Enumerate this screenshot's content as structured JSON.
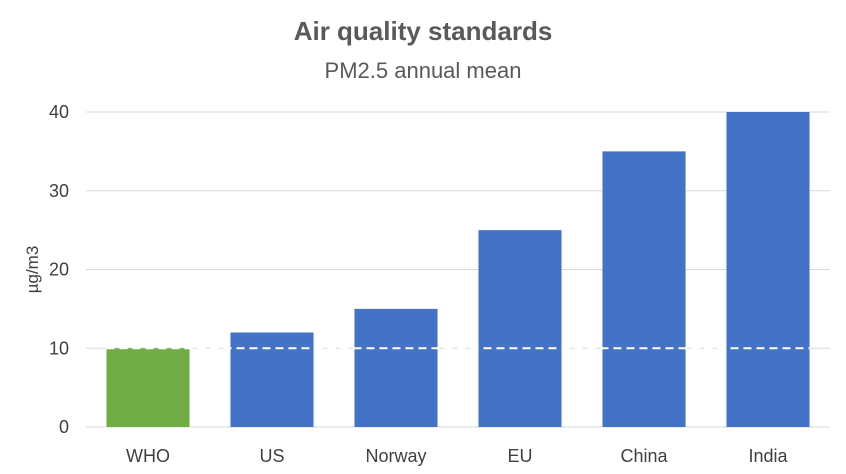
{
  "chart_data": {
    "type": "bar",
    "title": "Air quality standards",
    "subtitle": "PM2.5 annual mean",
    "ylabel": "µg/m3",
    "xlabel": "",
    "categories": [
      "WHO",
      "US",
      "Norway",
      "EU",
      "China",
      "India"
    ],
    "values": [
      10,
      12,
      15,
      25,
      35,
      40
    ],
    "ylim": [
      0,
      40
    ],
    "yticks": [
      0,
      10,
      20,
      30,
      40
    ],
    "grid": true,
    "legend": "none",
    "reference_line": {
      "value": 10,
      "style": "dashed",
      "color": "#ffffff"
    },
    "colors": {
      "highlight": "#70AD47",
      "default": "#4472C4",
      "grid": "#D9D9D9"
    },
    "highlight_category": "WHO"
  }
}
